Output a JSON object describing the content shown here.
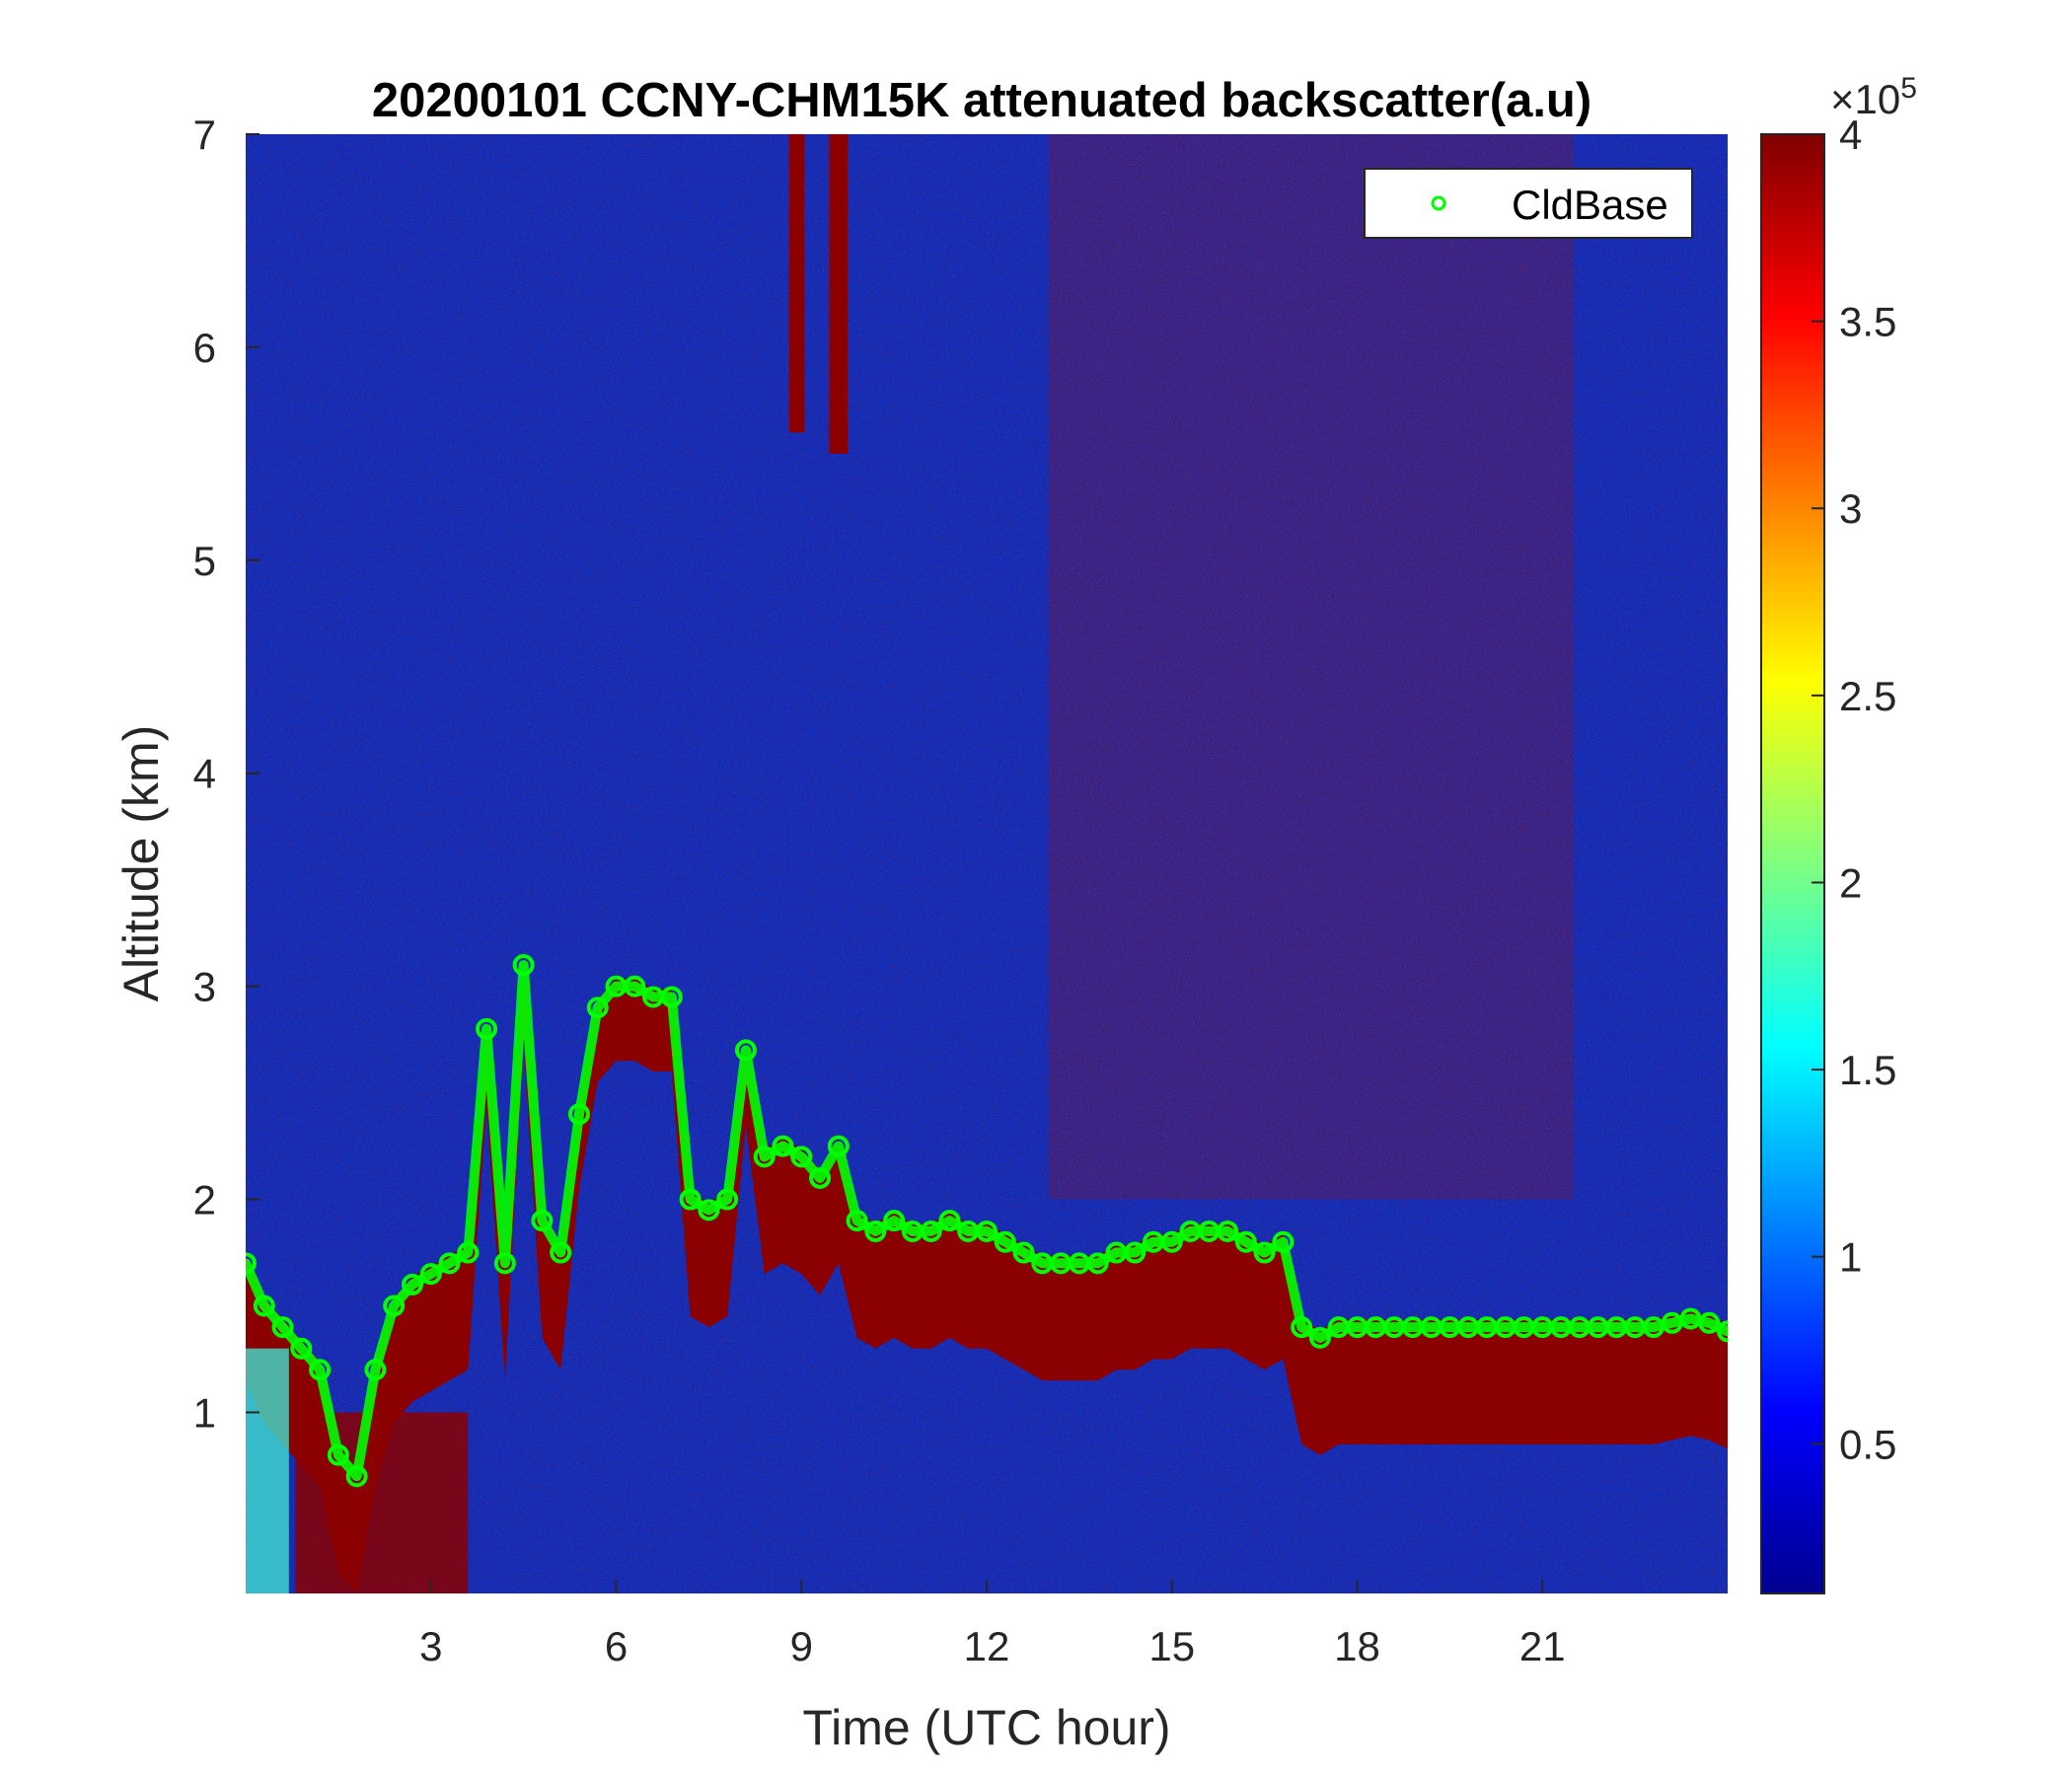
{
  "chart_data": {
    "type": "heatmap",
    "title": "20200101 CCNY-CHM15K attenuated backscatter(a.u)",
    "xlabel": "Time (UTC hour)",
    "ylabel": "Altitude (km)",
    "xlim": [
      0,
      24
    ],
    "ylim": [
      0.15,
      7
    ],
    "x_ticks": [
      3,
      6,
      9,
      12,
      15,
      18,
      21
    ],
    "y_ticks": [
      1,
      2,
      3,
      4,
      5,
      6,
      7
    ],
    "colorbar": {
      "label": "",
      "exponent_label": "×10",
      "exponent_power": "5",
      "range": [
        0.1,
        4
      ],
      "ticks": [
        0.5,
        1,
        1.5,
        2,
        2.5,
        3,
        3.5,
        4
      ],
      "colormap": "jet"
    },
    "grid": false,
    "legend": {
      "position": "top-right",
      "entries": [
        "CldBase"
      ]
    },
    "series": [
      {
        "name": "CldBase",
        "marker": "circle",
        "color": "#00ff00",
        "x": [
          0.0,
          0.3,
          0.6,
          0.9,
          1.2,
          1.5,
          1.8,
          2.1,
          2.4,
          2.7,
          3.0,
          3.3,
          3.6,
          3.9,
          4.2,
          4.5,
          4.8,
          5.1,
          5.4,
          5.7,
          6.0,
          6.3,
          6.6,
          6.9,
          7.2,
          7.5,
          7.8,
          8.1,
          8.4,
          8.7,
          9.0,
          9.3,
          9.6,
          9.9,
          10.2,
          10.5,
          10.8,
          11.1,
          11.4,
          11.7,
          12.0,
          12.3,
          12.6,
          12.9,
          13.2,
          13.5,
          13.8,
          14.1,
          14.4,
          14.7,
          15.0,
          15.3,
          15.6,
          15.9,
          16.2,
          16.5,
          16.8,
          17.1,
          17.4,
          17.7,
          18.0,
          18.3,
          18.6,
          18.9,
          19.2,
          19.5,
          19.8,
          20.1,
          20.4,
          20.7,
          21.0,
          21.3,
          21.6,
          21.9,
          22.2,
          22.5,
          22.8,
          23.1,
          23.4,
          23.7,
          24.0
        ],
        "y": [
          1.7,
          1.5,
          1.4,
          1.3,
          1.2,
          0.8,
          0.7,
          1.2,
          1.5,
          1.6,
          1.65,
          1.7,
          1.75,
          2.8,
          1.7,
          3.1,
          1.9,
          1.75,
          2.4,
          2.9,
          3.0,
          3.0,
          2.95,
          2.95,
          2.0,
          1.95,
          2.0,
          2.7,
          2.2,
          2.25,
          2.2,
          2.1,
          2.25,
          1.9,
          1.85,
          1.9,
          1.85,
          1.85,
          1.9,
          1.85,
          1.85,
          1.8,
          1.75,
          1.7,
          1.7,
          1.7,
          1.7,
          1.75,
          1.75,
          1.8,
          1.8,
          1.85,
          1.85,
          1.85,
          1.8,
          1.75,
          1.8,
          1.4,
          1.35,
          1.4,
          1.4,
          1.4,
          1.4,
          1.4,
          1.4,
          1.4,
          1.4,
          1.4,
          1.4,
          1.4,
          1.4,
          1.4,
          1.4,
          1.4,
          1.4,
          1.4,
          1.4,
          1.42,
          1.44,
          1.42,
          1.38
        ]
      }
    ]
  }
}
